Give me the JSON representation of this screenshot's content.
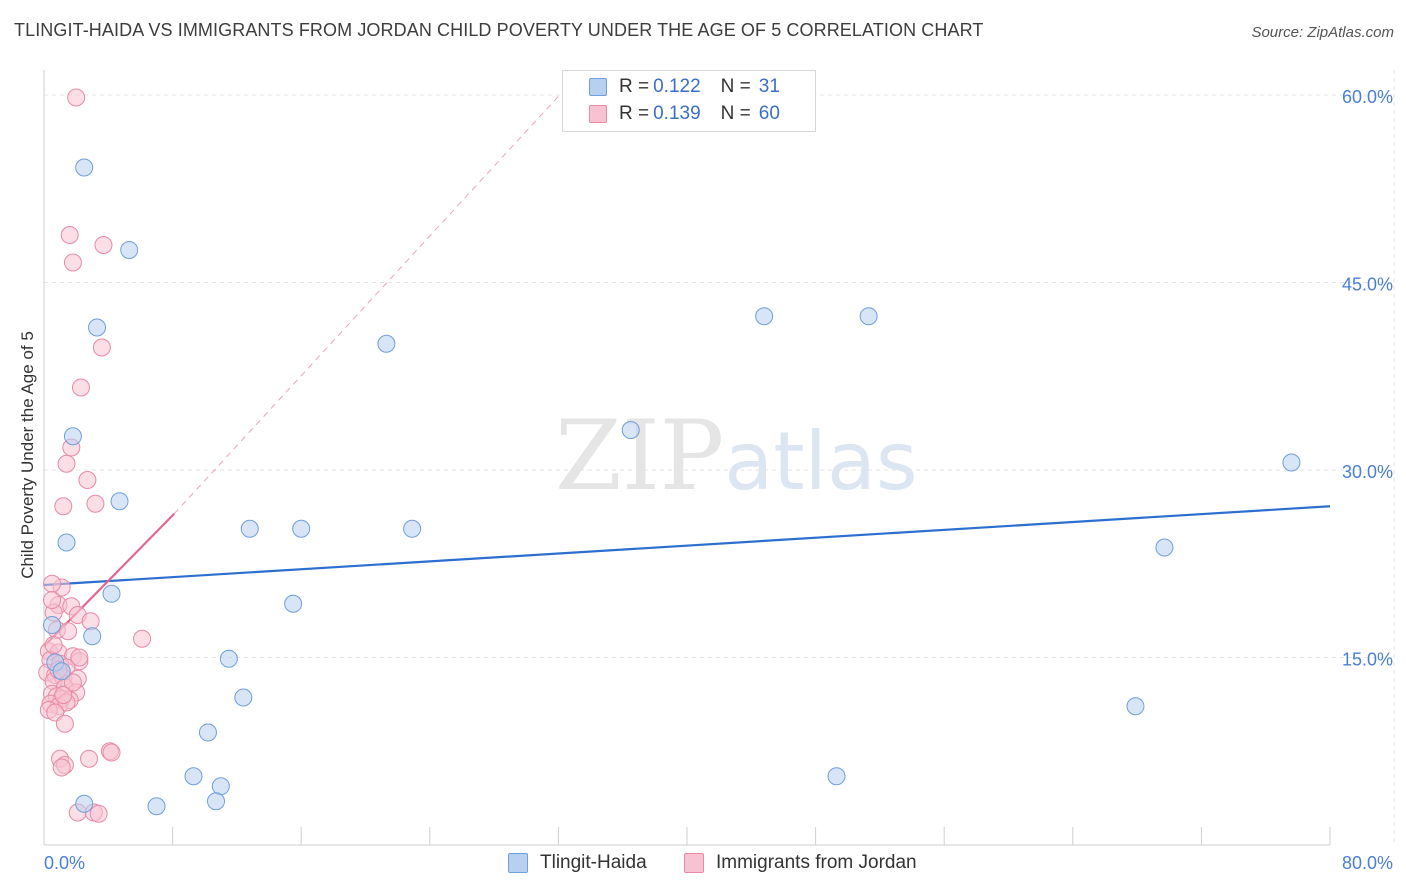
{
  "title": "TLINGIT-HAIDA VS IMMIGRANTS FROM JORDAN CHILD POVERTY UNDER THE AGE OF 5 CORRELATION CHART",
  "source": "Source: ZipAtlas.com",
  "watermark": {
    "zip": "ZIP",
    "atlas": "atlas"
  },
  "colors": {
    "series1_fill": "#b8d0f0",
    "series1_stroke": "#6f9fdc",
    "series1_line": "#2d6fd0",
    "series2_fill": "#f7c3d2",
    "series2_stroke": "#e88aa6",
    "series2_line": "#e2678f",
    "grid": "#e3e3e3",
    "tick_label": "#4a7fd4"
  },
  "legend": {
    "rows": [
      {
        "r_label": "R =",
        "r_value": "0.122",
        "n_label": "N =",
        "n_value": "31"
      },
      {
        "r_label": "R =",
        "r_value": "0.139",
        "n_label": "N =",
        "n_value": "60"
      }
    ]
  },
  "bottom_legend": [
    "Tlingit-Haida",
    "Immigrants from Jordan"
  ],
  "chart_data": {
    "type": "scatter",
    "title": "TLINGIT-HAIDA VS IMMIGRANTS FROM JORDAN CHILD POVERTY UNDER THE AGE OF 5 CORRELATION CHART",
    "xlabel": "",
    "ylabel": "Child Poverty Under the Age of 5",
    "xlim": [
      0,
      80
    ],
    "ylim": [
      0,
      62
    ],
    "x_tick_labels": [
      "0.0%",
      "80.0%"
    ],
    "y_ticks": [
      15,
      30,
      45,
      60
    ],
    "y_tick_labels": [
      "15.0%",
      "30.0%",
      "45.0%",
      "60.0%"
    ],
    "grid": true,
    "series": [
      {
        "name": "Tlingit-Haida",
        "points": [
          [
            2.5,
            54.2
          ],
          [
            5.3,
            47.6
          ],
          [
            3.3,
            41.4
          ],
          [
            21.3,
            40.1
          ],
          [
            44.8,
            42.3
          ],
          [
            51.3,
            42.3
          ],
          [
            36.5,
            33.2
          ],
          [
            77.6,
            30.6
          ],
          [
            1.8,
            32.7
          ],
          [
            4.7,
            27.5
          ],
          [
            1.4,
            24.2
          ],
          [
            12.8,
            25.3
          ],
          [
            16.0,
            25.3
          ],
          [
            22.9,
            25.3
          ],
          [
            69.7,
            23.8
          ],
          [
            4.2,
            20.1
          ],
          [
            15.5,
            19.3
          ],
          [
            0.5,
            17.6
          ],
          [
            3.0,
            16.7
          ],
          [
            11.5,
            14.9
          ],
          [
            12.4,
            11.8
          ],
          [
            67.9,
            11.1
          ],
          [
            10.2,
            9.0
          ],
          [
            9.3,
            5.5
          ],
          [
            11.0,
            4.7
          ],
          [
            49.3,
            5.5
          ],
          [
            2.5,
            3.3
          ],
          [
            7.0,
            3.1
          ],
          [
            10.7,
            3.5
          ],
          [
            0.7,
            14.6
          ],
          [
            1.1,
            13.9
          ]
        ],
        "trend": [
          [
            0,
            20.8
          ],
          [
            80,
            27.1
          ]
        ]
      },
      {
        "name": "Immigrants from Jordan",
        "points": [
          [
            2.0,
            59.8
          ],
          [
            1.6,
            48.8
          ],
          [
            3.7,
            48.0
          ],
          [
            1.8,
            46.6
          ],
          [
            3.6,
            39.8
          ],
          [
            2.3,
            36.6
          ],
          [
            1.7,
            31.8
          ],
          [
            1.4,
            30.5
          ],
          [
            2.7,
            29.2
          ],
          [
            1.2,
            27.1
          ],
          [
            3.2,
            27.3
          ],
          [
            1.1,
            20.6
          ],
          [
            0.5,
            20.9
          ],
          [
            0.9,
            19.2
          ],
          [
            0.6,
            18.6
          ],
          [
            1.7,
            19.1
          ],
          [
            2.1,
            18.4
          ],
          [
            2.9,
            17.9
          ],
          [
            0.8,
            17.2
          ],
          [
            1.5,
            17.1
          ],
          [
            6.1,
            16.5
          ],
          [
            0.3,
            15.5
          ],
          [
            0.9,
            15.4
          ],
          [
            1.8,
            15.1
          ],
          [
            2.2,
            14.7
          ],
          [
            0.4,
            14.8
          ],
          [
            1.0,
            14.5
          ],
          [
            1.4,
            14.2
          ],
          [
            0.2,
            13.8
          ],
          [
            0.7,
            13.6
          ],
          [
            1.2,
            13.4
          ],
          [
            2.1,
            13.3
          ],
          [
            0.6,
            13.1
          ],
          [
            1.3,
            12.6
          ],
          [
            2.0,
            12.2
          ],
          [
            0.5,
            12.1
          ],
          [
            0.8,
            11.9
          ],
          [
            1.1,
            11.7
          ],
          [
            1.6,
            11.6
          ],
          [
            0.4,
            11.3
          ],
          [
            0.9,
            11.1
          ],
          [
            1.4,
            11.4
          ],
          [
            0.3,
            10.8
          ],
          [
            0.7,
            10.6
          ],
          [
            1.3,
            9.7
          ],
          [
            4.1,
            7.5
          ],
          [
            4.2,
            7.4
          ],
          [
            2.8,
            6.9
          ],
          [
            1.0,
            6.9
          ],
          [
            1.3,
            6.4
          ],
          [
            1.1,
            6.2
          ],
          [
            2.1,
            2.6
          ],
          [
            3.1,
            2.6
          ],
          [
            3.4,
            2.5
          ],
          [
            2.2,
            15.0
          ],
          [
            0.6,
            16.0
          ],
          [
            1.8,
            13.0
          ],
          [
            0.9,
            14.0
          ],
          [
            1.2,
            12.0
          ],
          [
            0.5,
            19.6
          ]
        ],
        "trend": [
          [
            0,
            15.9
          ],
          [
            8.1,
            26.5
          ]
        ],
        "trend_extension": [
          [
            8.1,
            26.5
          ],
          [
            32.0,
            59.9
          ]
        ]
      }
    ]
  }
}
